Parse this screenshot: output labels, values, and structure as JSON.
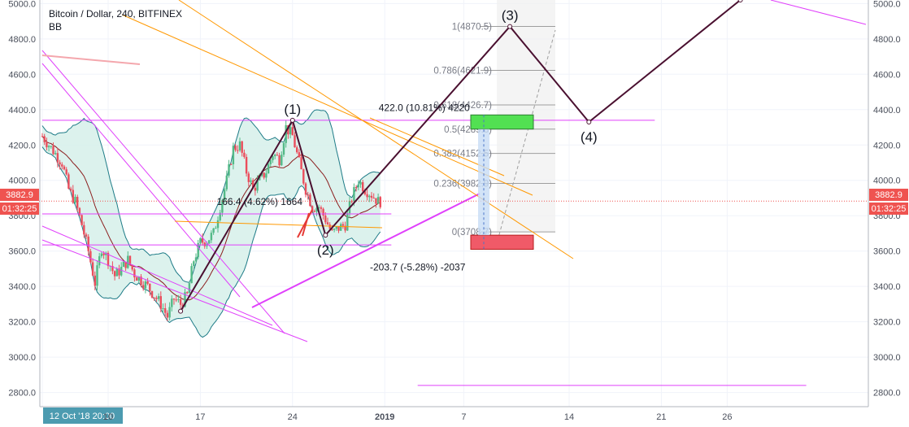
{
  "header": {
    "symbol": "Bitcoin / Dollar, 240, BITFINEX",
    "indicator": "BB"
  },
  "colors": {
    "up": "#53b987",
    "down": "#eb4d5c",
    "magenta": "#e040fb",
    "orange": "#ff9800",
    "wave": "#4a1030",
    "bb_fill": "#cfeee6",
    "bb_line": "#1e7b87",
    "basis": "#8b1e1e",
    "price_tag": "#ef5350"
  },
  "chart_data": {
    "type": "candlestick",
    "title": "Bitcoin / Dollar, 240, BITFINEX",
    "ylim": [
      2720,
      5020
    ],
    "y_ticks": [
      2800,
      3000,
      3200,
      3400,
      3600,
      3800,
      4000,
      4200,
      4400,
      4600,
      4800,
      5000
    ],
    "y_tick_labels": [
      "2800.0",
      "3000.0",
      "3200.0",
      "3400.0",
      "3600.0",
      "3800.0",
      "4000.0",
      "4200.0",
      "4400.0",
      "4600.0",
      "4800.0",
      "5000.0"
    ],
    "x_start_day": 5,
    "x_labels": [
      {
        "day": 5,
        "label": "12 Oct '18  20:00",
        "highlight": true
      },
      {
        "day": 10,
        "label": "10"
      },
      {
        "day": 17,
        "label": "17"
      },
      {
        "day": 24,
        "label": "24"
      },
      {
        "day": 31,
        "label": "2019",
        "bold": true
      },
      {
        "day": 37,
        "label": "7"
      },
      {
        "day": 45,
        "label": "14"
      },
      {
        "day": 52,
        "label": "21"
      },
      {
        "day": 57,
        "label": "26"
      }
    ],
    "last_price": 3882.9,
    "last_price_label": "3882.9",
    "countdown": "01:32:25",
    "close_path": [
      {
        "day": 5.0,
        "price": 4250
      },
      {
        "day": 6.0,
        "price": 4150
      },
      {
        "day": 6.5,
        "price": 4100
      },
      {
        "day": 7.0,
        "price": 3950
      },
      {
        "day": 7.5,
        "price": 3880
      },
      {
        "day": 8.0,
        "price": 3750
      },
      {
        "day": 8.5,
        "price": 3600
      },
      {
        "day": 9.0,
        "price": 3420
      },
      {
        "day": 9.5,
        "price": 3620
      },
      {
        "day": 10.0,
        "price": 3550
      },
      {
        "day": 10.5,
        "price": 3460
      },
      {
        "day": 11.0,
        "price": 3500
      },
      {
        "day": 11.5,
        "price": 3550
      },
      {
        "day": 12.0,
        "price": 3470
      },
      {
        "day": 13.0,
        "price": 3400
      },
      {
        "day": 14.0,
        "price": 3300
      },
      {
        "day": 14.5,
        "price": 3230
      },
      {
        "day": 15.0,
        "price": 3330
      },
      {
        "day": 15.5,
        "price": 3300
      },
      {
        "day": 16.0,
        "price": 3350
      },
      {
        "day": 16.5,
        "price": 3550
      },
      {
        "day": 17.0,
        "price": 3650
      },
      {
        "day": 17.5,
        "price": 3660
      },
      {
        "day": 18.0,
        "price": 3700
      },
      {
        "day": 18.5,
        "price": 3850
      },
      {
        "day": 19.0,
        "price": 4000
      },
      {
        "day": 19.5,
        "price": 4180
      },
      {
        "day": 20.0,
        "price": 4200
      },
      {
        "day": 20.5,
        "price": 4050
      },
      {
        "day": 21.0,
        "price": 3950
      },
      {
        "day": 21.5,
        "price": 4000
      },
      {
        "day": 22.0,
        "price": 4050
      },
      {
        "day": 22.5,
        "price": 4150
      },
      {
        "day": 23.0,
        "price": 4120
      },
      {
        "day": 23.5,
        "price": 4300
      },
      {
        "day": 24.0,
        "price": 4250
      },
      {
        "day": 24.5,
        "price": 4100
      },
      {
        "day": 25.0,
        "price": 3950
      },
      {
        "day": 25.5,
        "price": 3850
      },
      {
        "day": 26.0,
        "price": 3850
      },
      {
        "day": 26.5,
        "price": 3780
      },
      {
        "day": 27.0,
        "price": 3700
      },
      {
        "day": 27.5,
        "price": 3730
      },
      {
        "day": 28.0,
        "price": 3750
      },
      {
        "day": 28.5,
        "price": 3900
      },
      {
        "day": 29.0,
        "price": 4000
      },
      {
        "day": 29.5,
        "price": 3950
      },
      {
        "day": 30.0,
        "price": 3920
      },
      {
        "day": 30.5,
        "price": 3880
      },
      {
        "day": 30.8,
        "price": 3883
      }
    ],
    "fibonacci": [
      {
        "ratio": "1",
        "price": 4870.5,
        "label": "1(4870.5)"
      },
      {
        "ratio": "0.786",
        "price": 4621.9,
        "label": "0.786(4621.9)"
      },
      {
        "ratio": "0.618",
        "price": 4426.7,
        "label": "0.618(4426.7)"
      },
      {
        "ratio": "0.5",
        "price": 4289.6,
        "label": "0.5(4289.6)"
      },
      {
        "ratio": "0.382",
        "price": 4152.5,
        "label": "0.382(4152.5)"
      },
      {
        "ratio": "0.236",
        "price": 3982.9,
        "label": "0.236(3982.9)"
      },
      {
        "ratio": "0",
        "price": 3708.7,
        "label": "0(3708.7)"
      }
    ],
    "waves": [
      {
        "label": "(1)",
        "day": 24.0,
        "price": 4340
      },
      {
        "label": "(2)",
        "day": 26.5,
        "price": 3690
      },
      {
        "label": "(3)",
        "day": 40.5,
        "price": 4870
      },
      {
        "label": "(4)",
        "day": 46.5,
        "price": 4330
      }
    ],
    "wave_path": [
      {
        "day": 15.5,
        "price": 3260
      },
      {
        "day": 24.0,
        "price": 4340
      },
      {
        "day": 26.5,
        "price": 3690
      },
      {
        "day": 40.5,
        "price": 4870
      },
      {
        "day": 46.5,
        "price": 4330
      },
      {
        "day": 58.0,
        "price": 5020
      }
    ],
    "horizontal_levels": [
      {
        "name": "upper",
        "price": 4340,
        "day_from": 5,
        "day_to": 51.5
      },
      {
        "name": "mid",
        "price": 3810,
        "day_from": 5,
        "day_to": 31.5
      },
      {
        "name": "lower",
        "price": 3635,
        "day_from": 5,
        "day_to": 31.5
      },
      {
        "name": "bottom",
        "price": 2840,
        "day_from": 33.5,
        "day_to": 63.0
      }
    ],
    "measurements": [
      {
        "label": "166.4 (4.62%) 1664",
        "day": 21.5,
        "price": 3880
      },
      {
        "label": "422.0 (10.81%) 4220",
        "day": 34.0,
        "price": 4410
      },
      {
        "label": "-203.7 (-5.28%) -2037",
        "day": 33.5,
        "price": 3510
      }
    ],
    "zones": [
      {
        "name": "target",
        "price_top": 4370,
        "price_bottom": 4290
      },
      {
        "name": "stop",
        "price_top": 3690,
        "price_bottom": 3610
      }
    ]
  }
}
